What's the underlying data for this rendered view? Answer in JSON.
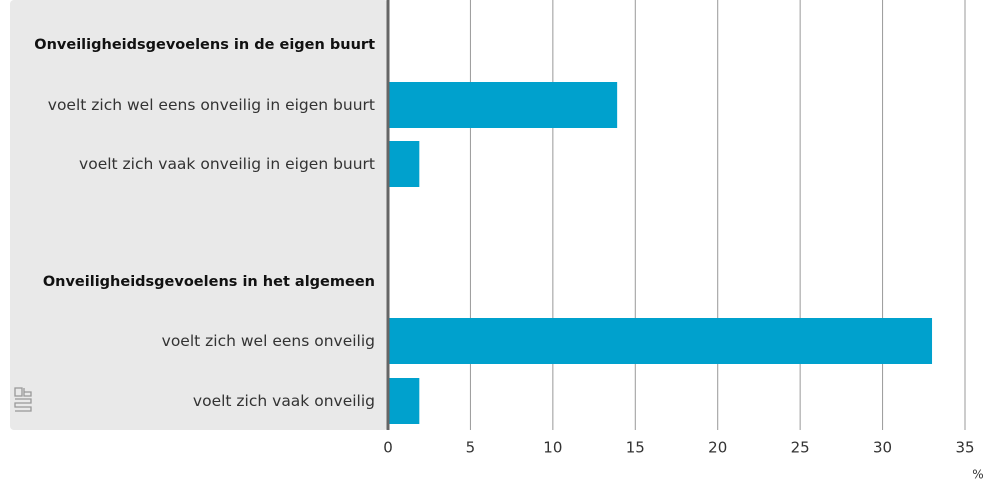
{
  "chart_data": {
    "type": "bar",
    "orientation": "horizontal",
    "color": "#00a1cd",
    "groups": [
      {
        "name": "Onveiligheidsgevoelens in de eigen buurt",
        "categories": [
          "voelt zich wel eens onveilig in eigen buurt",
          "voelt zich vaak onveilig in eigen buurt"
        ],
        "values": [
          13.9,
          1.9
        ]
      },
      {
        "name": "Onveiligheidsgevoelens in het algemeen",
        "categories": [
          "voelt zich wel eens onveilig",
          "voelt zich vaak onveilig"
        ],
        "values": [
          33,
          1.9
        ]
      }
    ],
    "xlim": [
      0,
      35
    ],
    "xticks": [
      0,
      5,
      10,
      15,
      20,
      25,
      30,
      35
    ],
    "x_unit": "%",
    "grid": true
  }
}
